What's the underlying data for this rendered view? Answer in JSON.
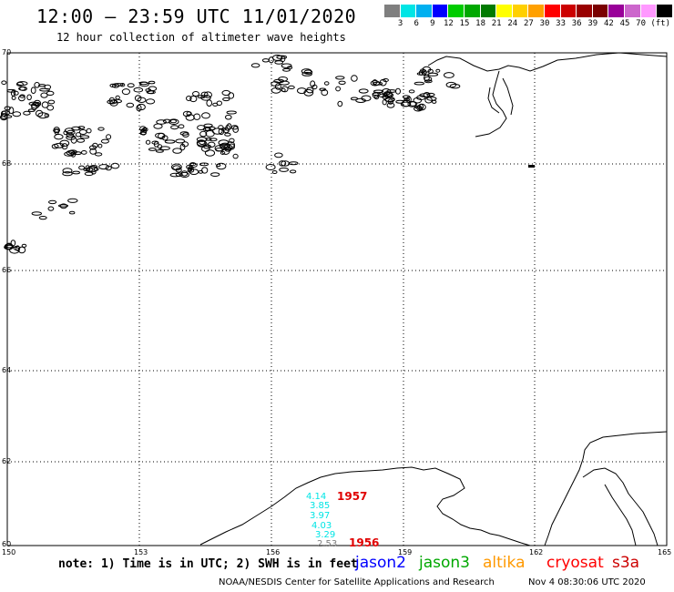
{
  "header": {
    "title": "12:00 – 23:59 UTC 11/01/2020",
    "subtitle": "12 hour collection of altimeter wave heights"
  },
  "colorbar": {
    "colors": [
      "#7f7f7f",
      "#00e5e5",
      "#00b0f0",
      "#0000ff",
      "#00cc00",
      "#00a800",
      "#007a00",
      "#ffff00",
      "#ffd000",
      "#ffa000",
      "#ff0000",
      "#cc0000",
      "#990000",
      "#7a0000",
      "#990099",
      "#cc66cc",
      "#ff99ff",
      "#000000"
    ],
    "labels": [
      "3",
      "6",
      "9",
      "12",
      "15",
      "18",
      "21",
      "24",
      "27",
      "30",
      "33",
      "36",
      "39",
      "42",
      "45",
      "70",
      "(ft)"
    ]
  },
  "map": {
    "lat_labels": [
      "70",
      "68",
      "66",
      "64",
      "62",
      "60"
    ],
    "lon_labels": [
      "150",
      "153",
      "156",
      "159",
      "162",
      "165"
    ],
    "track_values": [
      "4.14",
      "3.85",
      "3.97",
      "4.03",
      "3.29",
      "2.53"
    ],
    "track_colors": [
      "#00e5e5",
      "#00e5e5",
      "#00e5e5",
      "#00e5e5",
      "#00e5e5",
      "#7f7f7f"
    ],
    "pass_labels": [
      "1957",
      "1956"
    ]
  },
  "footer": {
    "note": "note: 1) Time is in UTC; 2) SWH is in feet",
    "satellites": [
      {
        "name": "jason2",
        "color": "#0000ff"
      },
      {
        "name": "jason3",
        "color": "#00a800"
      },
      {
        "name": "altika",
        "color": "#ff9900"
      },
      {
        "name": "cryosat",
        "color": "#ff0000"
      },
      {
        "name": "s3a",
        "color": "#cc0000"
      }
    ],
    "credit": "NOAA/NESDIS Center for Satellite Applications and Research",
    "timestamp": "Nov  4 08:30:06 UTC 2020"
  }
}
